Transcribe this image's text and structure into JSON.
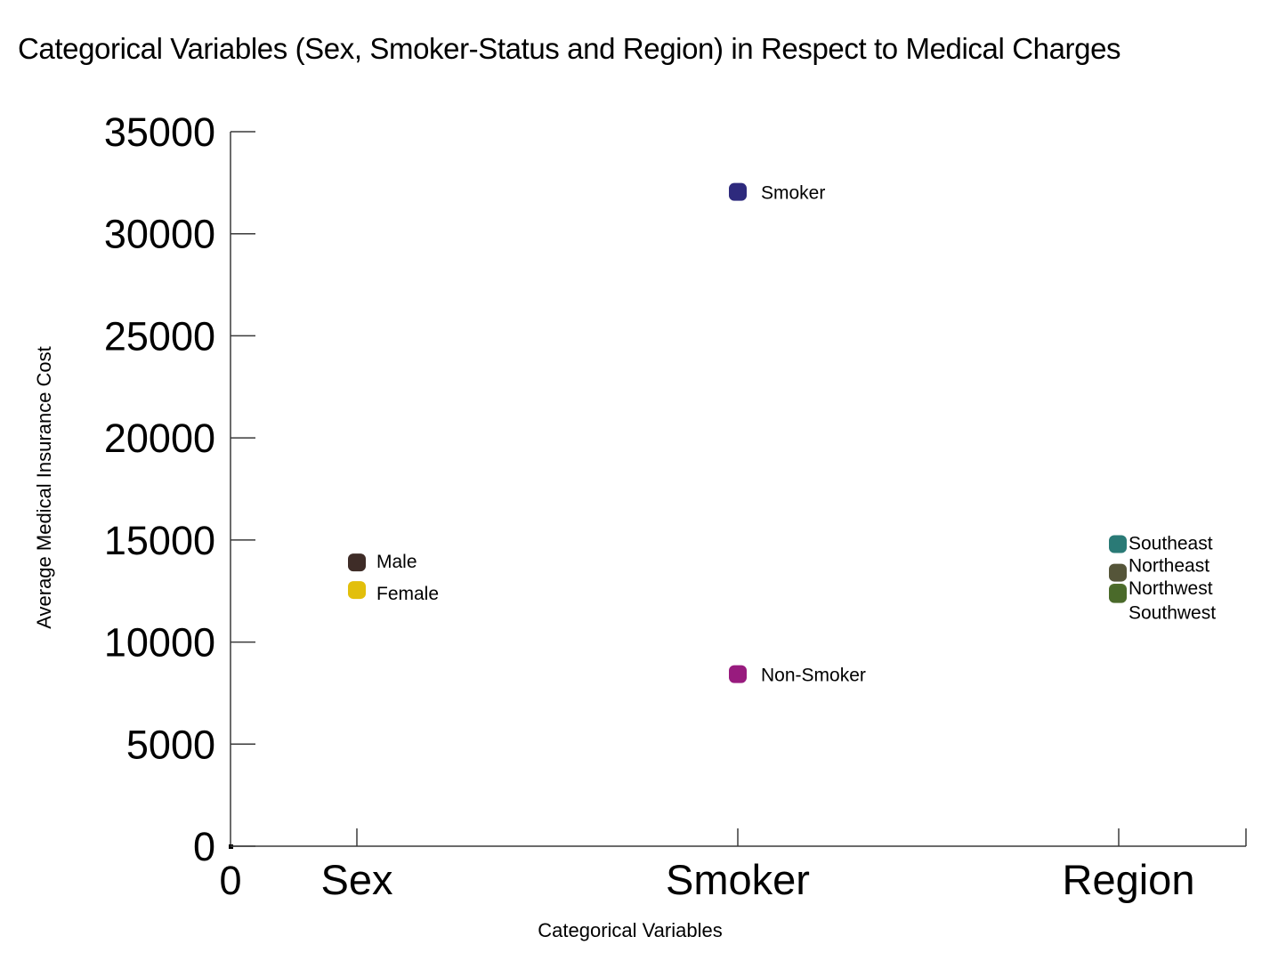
{
  "chart_data": {
    "type": "scatter",
    "title": "Categorical Variables (Sex, Smoker-Status and Region) in Respect to Medical Charges",
    "xlabel": "Categorical Variables",
    "ylabel": "Average Medical Insurance Cost",
    "categories": [
      "Sex",
      "Smoker",
      "Region"
    ],
    "x_origin_label": "0",
    "ylim": [
      0,
      35000
    ],
    "yticks": [
      "0",
      "5000",
      "10000",
      "15000",
      "20000",
      "25000",
      "30000",
      "35000"
    ],
    "grid": false,
    "legend": "none",
    "points": [
      {
        "category": "Sex",
        "label": "Male",
        "value": 13900,
        "color": "#3e2c27"
      },
      {
        "category": "Sex",
        "label": "Female",
        "value": 12550,
        "color": "#e2bf0b"
      },
      {
        "category": "Smoker",
        "label": "Smoker",
        "value": 32050,
        "color": "#2e2a7d"
      },
      {
        "category": "Smoker",
        "label": "Non-Smoker",
        "value": 8430,
        "color": "#981b7e"
      },
      {
        "category": "Region",
        "label": "Southeast",
        "value": 14800,
        "color": "#2a7a76"
      },
      {
        "category": "Region",
        "label": "Northeast",
        "value": 13400,
        "color": "#555539"
      },
      {
        "category": "Region",
        "label": "Northwest",
        "value": 12420,
        "color": "#54712f"
      },
      {
        "category": "Region",
        "label": "Southwest",
        "value": 12350,
        "color": "#4a6a2a"
      }
    ]
  }
}
